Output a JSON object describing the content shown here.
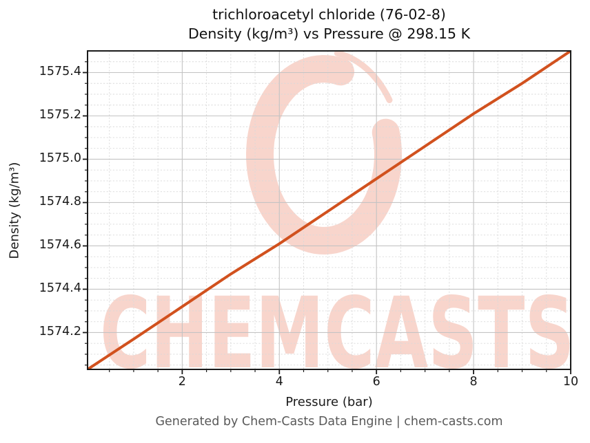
{
  "title": {
    "line1": "trichloroacetyl chloride (76-02-8)",
    "line2": "Density (kg/m³) vs Pressure @ 298.15 K"
  },
  "footer": {
    "text": "Generated by Chem-Casts Data Engine | chem-casts.com"
  },
  "watermark": {
    "text": "CHEMCASTS",
    "logo": "brush-circle-logo",
    "color": "#f8d5cc"
  },
  "style": {
    "line_color": "#d1511e",
    "major_grid_color": "#c3c3c3",
    "minor_grid_color": "#d9d9d9",
    "spine_color": "#1a1a1a",
    "text_color": "#1a1a1a",
    "footer_color": "#595959",
    "background": "#ffffff"
  },
  "chart_data": {
    "type": "line",
    "title": "trichloroacetyl chloride (76-02-8)",
    "subtitle": "Density (kg/m³) vs Pressure @ 298.15 K",
    "xlabel": "Pressure (bar)",
    "ylabel": "Density (kg/m³)",
    "xlim": [
      0.05,
      10
    ],
    "ylim": [
      1574.03,
      1575.5
    ],
    "grid": {
      "major": true,
      "minor": true,
      "minor_style": "dashed"
    },
    "legend": false,
    "xticks": {
      "values": [
        2,
        4,
        6,
        8,
        10
      ],
      "labels": [
        "2",
        "4",
        "6",
        "8",
        "10"
      ],
      "minor_step": 0.5
    },
    "yticks": {
      "values": [
        1574.2,
        1574.4,
        1574.6,
        1574.8,
        1575.0,
        1575.2,
        1575.4
      ],
      "labels": [
        "1574.2",
        "1574.4",
        "1574.6",
        "1574.8",
        "1575.0",
        "1575.2",
        "1575.4"
      ],
      "minor_step": 0.05
    },
    "series": [
      {
        "name": "Density vs Pressure @ 298.15 K",
        "color": "#d1511e",
        "x": [
          0.05,
          1,
          2,
          3,
          4,
          5,
          6,
          7,
          8,
          9,
          10
        ],
        "y": [
          1574.03,
          1574.17,
          1574.32,
          1574.47,
          1574.61,
          1574.76,
          1574.91,
          1575.06,
          1575.21,
          1575.35,
          1575.5
        ]
      }
    ]
  }
}
